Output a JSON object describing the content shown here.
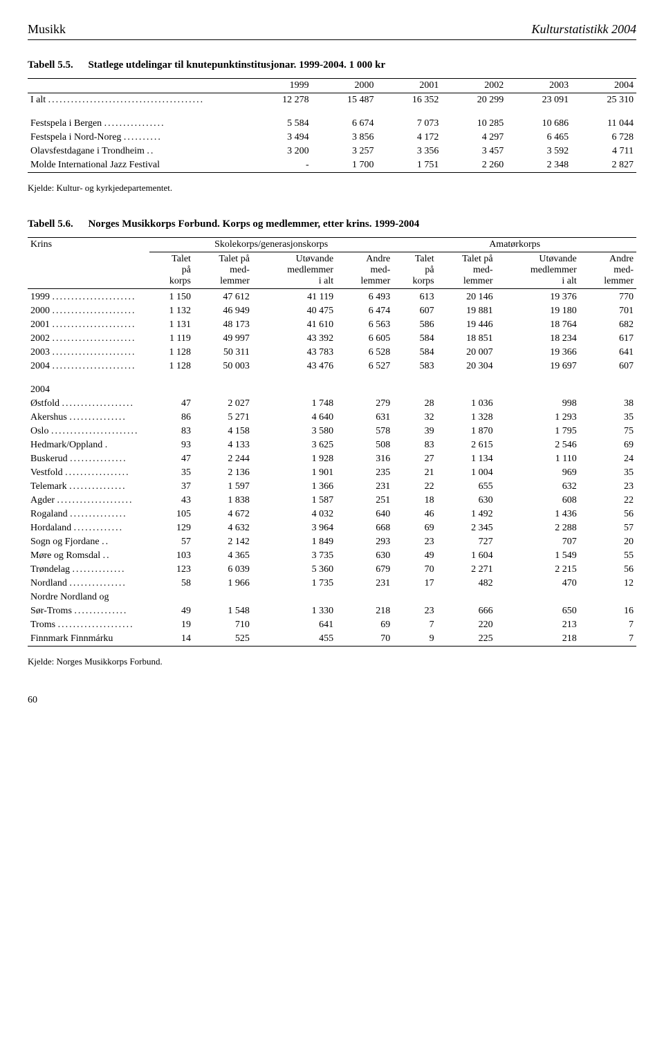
{
  "header": {
    "left": "Musikk",
    "right": "Kulturstatistikk 2004"
  },
  "table55": {
    "number": "Tabell 5.5.",
    "title": "Statlege utdelingar til knutepunktinstitusjonar. 1999-2004. 1 000 kr",
    "col_years": [
      "1999",
      "2000",
      "2001",
      "2002",
      "2003",
      "2004"
    ],
    "rows": [
      {
        "label": "I alt",
        "dots": ".........................................",
        "vals": [
          "12 278",
          "15 487",
          "16 352",
          "20 299",
          "23 091",
          "25 310"
        ]
      },
      {
        "label": "Festspela i Bergen",
        "dots": "................",
        "vals": [
          "5 584",
          "6 674",
          "7 073",
          "10 285",
          "10 686",
          "11 044"
        ]
      },
      {
        "label": "Festspela i Nord-Noreg",
        "dots": "..........",
        "vals": [
          "3 494",
          "3 856",
          "4 172",
          "4 297",
          "6 465",
          "6 728"
        ]
      },
      {
        "label": "Olavsfestdagane i Trondheim",
        "dots": "..",
        "vals": [
          "3 200",
          "3 257",
          "3 356",
          "3 457",
          "3 592",
          "4 711"
        ]
      },
      {
        "label": "Molde International Jazz Festival",
        "dots": "",
        "vals": [
          "-",
          "1 700",
          "1 751",
          "2 260",
          "2 348",
          "2 827"
        ]
      }
    ],
    "source": "Kjelde: Kultur- og kyrkjedepartementet."
  },
  "table56": {
    "number": "Tabell 5.6.",
    "title": "Norges Musikkorps Forbund. Korps og medlemmer, etter krins. 1999-2004",
    "krins": "Krins",
    "span1": "Skolekorps/generasjonskorps",
    "span2": "Amatørkorps",
    "cols": {
      "c1a": "Talet",
      "c1b": "på",
      "c1c": "korps",
      "c2a": "Talet på",
      "c2b": "med-",
      "c2c": "lemmer",
      "c3a": "Utøvande",
      "c3b": "medlemmer",
      "c3c": "i alt",
      "c4a": "Andre",
      "c4b": "med-",
      "c4c": "lemmer",
      "c5a": "Talet",
      "c5b": "på",
      "c5c": "korps",
      "c6a": "Talet på",
      "c6b": "med-",
      "c6c": "lemmer",
      "c7a": "Utøvande",
      "c7b": "medlemmer",
      "c7c": "i alt",
      "c8a": "Andre",
      "c8b": "med-",
      "c8c": "lemmer"
    },
    "year_rows": [
      {
        "label": "1999",
        "dots": "......................",
        "vals": [
          "1 150",
          "47 612",
          "41 119",
          "6 493",
          "613",
          "20 146",
          "19 376",
          "770"
        ]
      },
      {
        "label": "2000",
        "dots": "......................",
        "vals": [
          "1 132",
          "46 949",
          "40 475",
          "6 474",
          "607",
          "19 881",
          "19 180",
          "701"
        ]
      },
      {
        "label": "2001",
        "dots": "......................",
        "vals": [
          "1 131",
          "48 173",
          "41 610",
          "6 563",
          "586",
          "19 446",
          "18 764",
          "682"
        ]
      },
      {
        "label": "2002",
        "dots": "......................",
        "vals": [
          "1 119",
          "49 997",
          "43 392",
          "6 605",
          "584",
          "18 851",
          "18 234",
          "617"
        ]
      },
      {
        "label": "2003",
        "dots": "......................",
        "vals": [
          "1 128",
          "50 311",
          "43 783",
          "6 528",
          "584",
          "20 007",
          "19 366",
          "641"
        ]
      },
      {
        "label": "2004",
        "dots": "......................",
        "vals": [
          "1 128",
          "50 003",
          "43 476",
          "6 527",
          "583",
          "20 304",
          "19 697",
          "607"
        ]
      }
    ],
    "section_2004": "2004",
    "region_rows": [
      {
        "label": "Østfold",
        "dots": "...................",
        "vals": [
          "47",
          "2 027",
          "1 748",
          "279",
          "28",
          "1 036",
          "998",
          "38"
        ]
      },
      {
        "label": "Akershus",
        "dots": "...............",
        "vals": [
          "86",
          "5 271",
          "4 640",
          "631",
          "32",
          "1 328",
          "1 293",
          "35"
        ]
      },
      {
        "label": "Oslo",
        "dots": ".......................",
        "vals": [
          "83",
          "4 158",
          "3 580",
          "578",
          "39",
          "1 870",
          "1 795",
          "75"
        ]
      },
      {
        "label": "Hedmark/Oppland",
        "dots": ".",
        "vals": [
          "93",
          "4 133",
          "3 625",
          "508",
          "83",
          "2 615",
          "2 546",
          "69"
        ]
      },
      {
        "label": "Buskerud",
        "dots": "...............",
        "vals": [
          "47",
          "2 244",
          "1 928",
          "316",
          "27",
          "1 134",
          "1 110",
          "24"
        ]
      },
      {
        "label": "Vestfold",
        "dots": ".................",
        "vals": [
          "35",
          "2 136",
          "1 901",
          "235",
          "21",
          "1 004",
          "969",
          "35"
        ]
      },
      {
        "label": "Telemark",
        "dots": "...............",
        "vals": [
          "37",
          "1 597",
          "1 366",
          "231",
          "22",
          "655",
          "632",
          "23"
        ]
      },
      {
        "label": "Agder",
        "dots": "....................",
        "vals": [
          "43",
          "1 838",
          "1 587",
          "251",
          "18",
          "630",
          "608",
          "22"
        ]
      },
      {
        "label": "Rogaland",
        "dots": "...............",
        "vals": [
          "105",
          "4 672",
          "4 032",
          "640",
          "46",
          "1 492",
          "1 436",
          "56"
        ]
      },
      {
        "label": "Hordaland",
        "dots": ".............",
        "vals": [
          "129",
          "4 632",
          "3 964",
          "668",
          "69",
          "2 345",
          "2 288",
          "57"
        ]
      },
      {
        "label": "Sogn og Fjordane",
        "dots": "..",
        "vals": [
          "57",
          "2 142",
          "1 849",
          "293",
          "23",
          "727",
          "707",
          "20"
        ]
      },
      {
        "label": "Møre og Romsdal",
        "dots": "..",
        "vals": [
          "103",
          "4 365",
          "3 735",
          "630",
          "49",
          "1 604",
          "1 549",
          "55"
        ]
      },
      {
        "label": "Trøndelag",
        "dots": "..............",
        "vals": [
          "123",
          "6 039",
          "5 360",
          "679",
          "70",
          "2 271",
          "2 215",
          "56"
        ]
      },
      {
        "label": "Nordland",
        "dots": "...............",
        "vals": [
          "58",
          "1 966",
          "1 735",
          "231",
          "17",
          "482",
          "470",
          "12"
        ]
      },
      {
        "label": "Nordre Nordland og",
        "dots": "",
        "vals": []
      },
      {
        "label": "Sør-Troms",
        "dots": "..............",
        "vals": [
          "49",
          "1 548",
          "1 330",
          "218",
          "23",
          "666",
          "650",
          "16"
        ]
      },
      {
        "label": "Troms",
        "dots": "....................",
        "vals": [
          "19",
          "710",
          "641",
          "69",
          "7",
          "220",
          "213",
          "7"
        ]
      },
      {
        "label": "Finnmark Finnmárku",
        "dots": "",
        "vals": [
          "14",
          "525",
          "455",
          "70",
          "9",
          "225",
          "218",
          "7"
        ]
      }
    ],
    "source": "Kjelde: Norges Musikkorps Forbund."
  },
  "page_number": "60"
}
